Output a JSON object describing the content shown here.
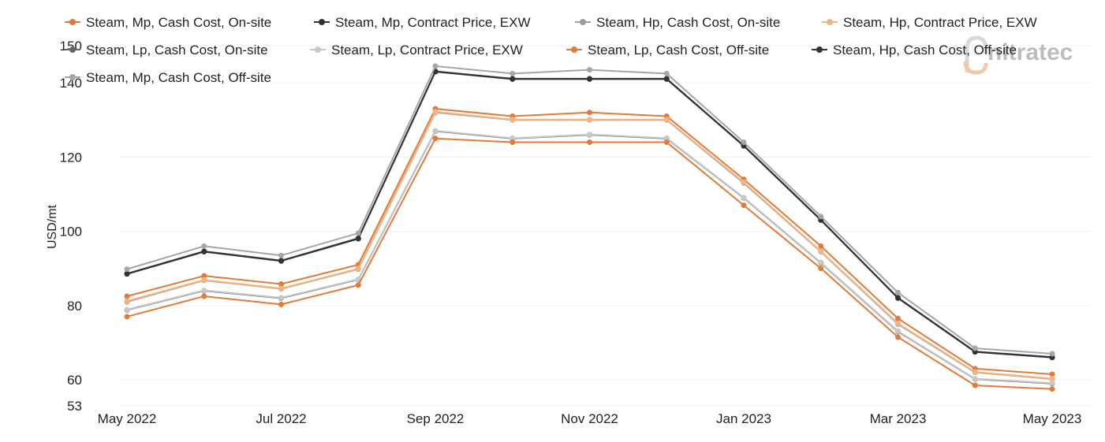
{
  "chart_data": {
    "type": "line",
    "ylabel": "USD/mt",
    "ylim": [
      53,
      150
    ],
    "yticks": [
      53,
      60,
      80,
      100,
      120,
      140,
      150
    ],
    "x": [
      "May 2022",
      "Jun 2022",
      "Jul 2022",
      "Aug 2022",
      "Sep 2022",
      "Oct 2022",
      "Nov 2022",
      "Dec 2022",
      "Jan 2023",
      "Feb 2023",
      "Mar 2023",
      "Apr 2023",
      "May 2023"
    ],
    "xtick_labels": [
      "May 2022",
      "",
      "Jul 2022",
      "",
      "Sep 2022",
      "",
      "Nov 2022",
      "",
      "Jan 2023",
      "",
      "Mar 2023",
      "",
      "May 2023"
    ],
    "grid": true,
    "legend_position": "top",
    "series": [
      {
        "name": "Steam, Mp, Cash Cost, On-site",
        "color": "#E07B39",
        "values": [
          82.5,
          88,
          85.8,
          91,
          133,
          131,
          132,
          131,
          114,
          96,
          76.5,
          63,
          61.5
        ]
      },
      {
        "name": "Steam, Mp, Contract Price, EXW",
        "color": "#333333",
        "values": [
          88.5,
          94.5,
          92,
          98,
          143,
          141,
          141,
          141,
          123,
          103,
          82,
          67.5,
          66
        ]
      },
      {
        "name": "Steam, Hp, Cash Cost, On-site",
        "color": "#9E9E9E",
        "values": [
          81,
          86.8,
          84.5,
          89.8,
          132,
          130,
          130,
          130,
          113,
          94.5,
          75,
          62,
          60.2
        ]
      },
      {
        "name": "Steam, Hp, Contract Price, EXW",
        "color": "#F1B583",
        "values": [
          81.2,
          86.9,
          84.6,
          89.9,
          132.2,
          130.1,
          130.1,
          130.1,
          113.2,
          94.6,
          75.2,
          62.1,
          60.3
        ]
      },
      {
        "name": "Steam, Lp, Cash Cost, On-site",
        "color": "#666666",
        "values": [
          78.8,
          84,
          82,
          87,
          127,
          125,
          126,
          125,
          109,
          91.5,
          73,
          60.2,
          59
        ]
      },
      {
        "name": "Steam, Lp, Contract Price, EXW",
        "color": "#C8C8C8",
        "values": [
          78.9,
          84.1,
          82.1,
          87.1,
          127.1,
          125.1,
          126.1,
          125.1,
          109.1,
          91.6,
          73.1,
          60.3,
          59.1
        ]
      },
      {
        "name": "Steam, Lp, Cash Cost, Off-site",
        "color": "#E07B39",
        "values": [
          77,
          82.5,
          80.3,
          85.5,
          125,
          124,
          124,
          124,
          107,
          90,
          71.5,
          58.5,
          57.5
        ]
      },
      {
        "name": "Steam, Hp, Cash Cost, Off-site",
        "color": "#333333",
        "values": [
          88.6,
          94.6,
          92.1,
          98.1,
          143.1,
          141.1,
          141.1,
          141.1,
          123.1,
          103.1,
          82.1,
          67.6,
          66.1
        ]
      },
      {
        "name": "Steam, Mp, Cash Cost, Off-site",
        "color": "#A6A6A6",
        "values": [
          89.8,
          96,
          93.5,
          99.5,
          144.5,
          142.5,
          143.5,
          142.5,
          124,
          104,
          83.5,
          68.5,
          67
        ]
      }
    ]
  },
  "logo": {
    "text": "nitratec"
  }
}
